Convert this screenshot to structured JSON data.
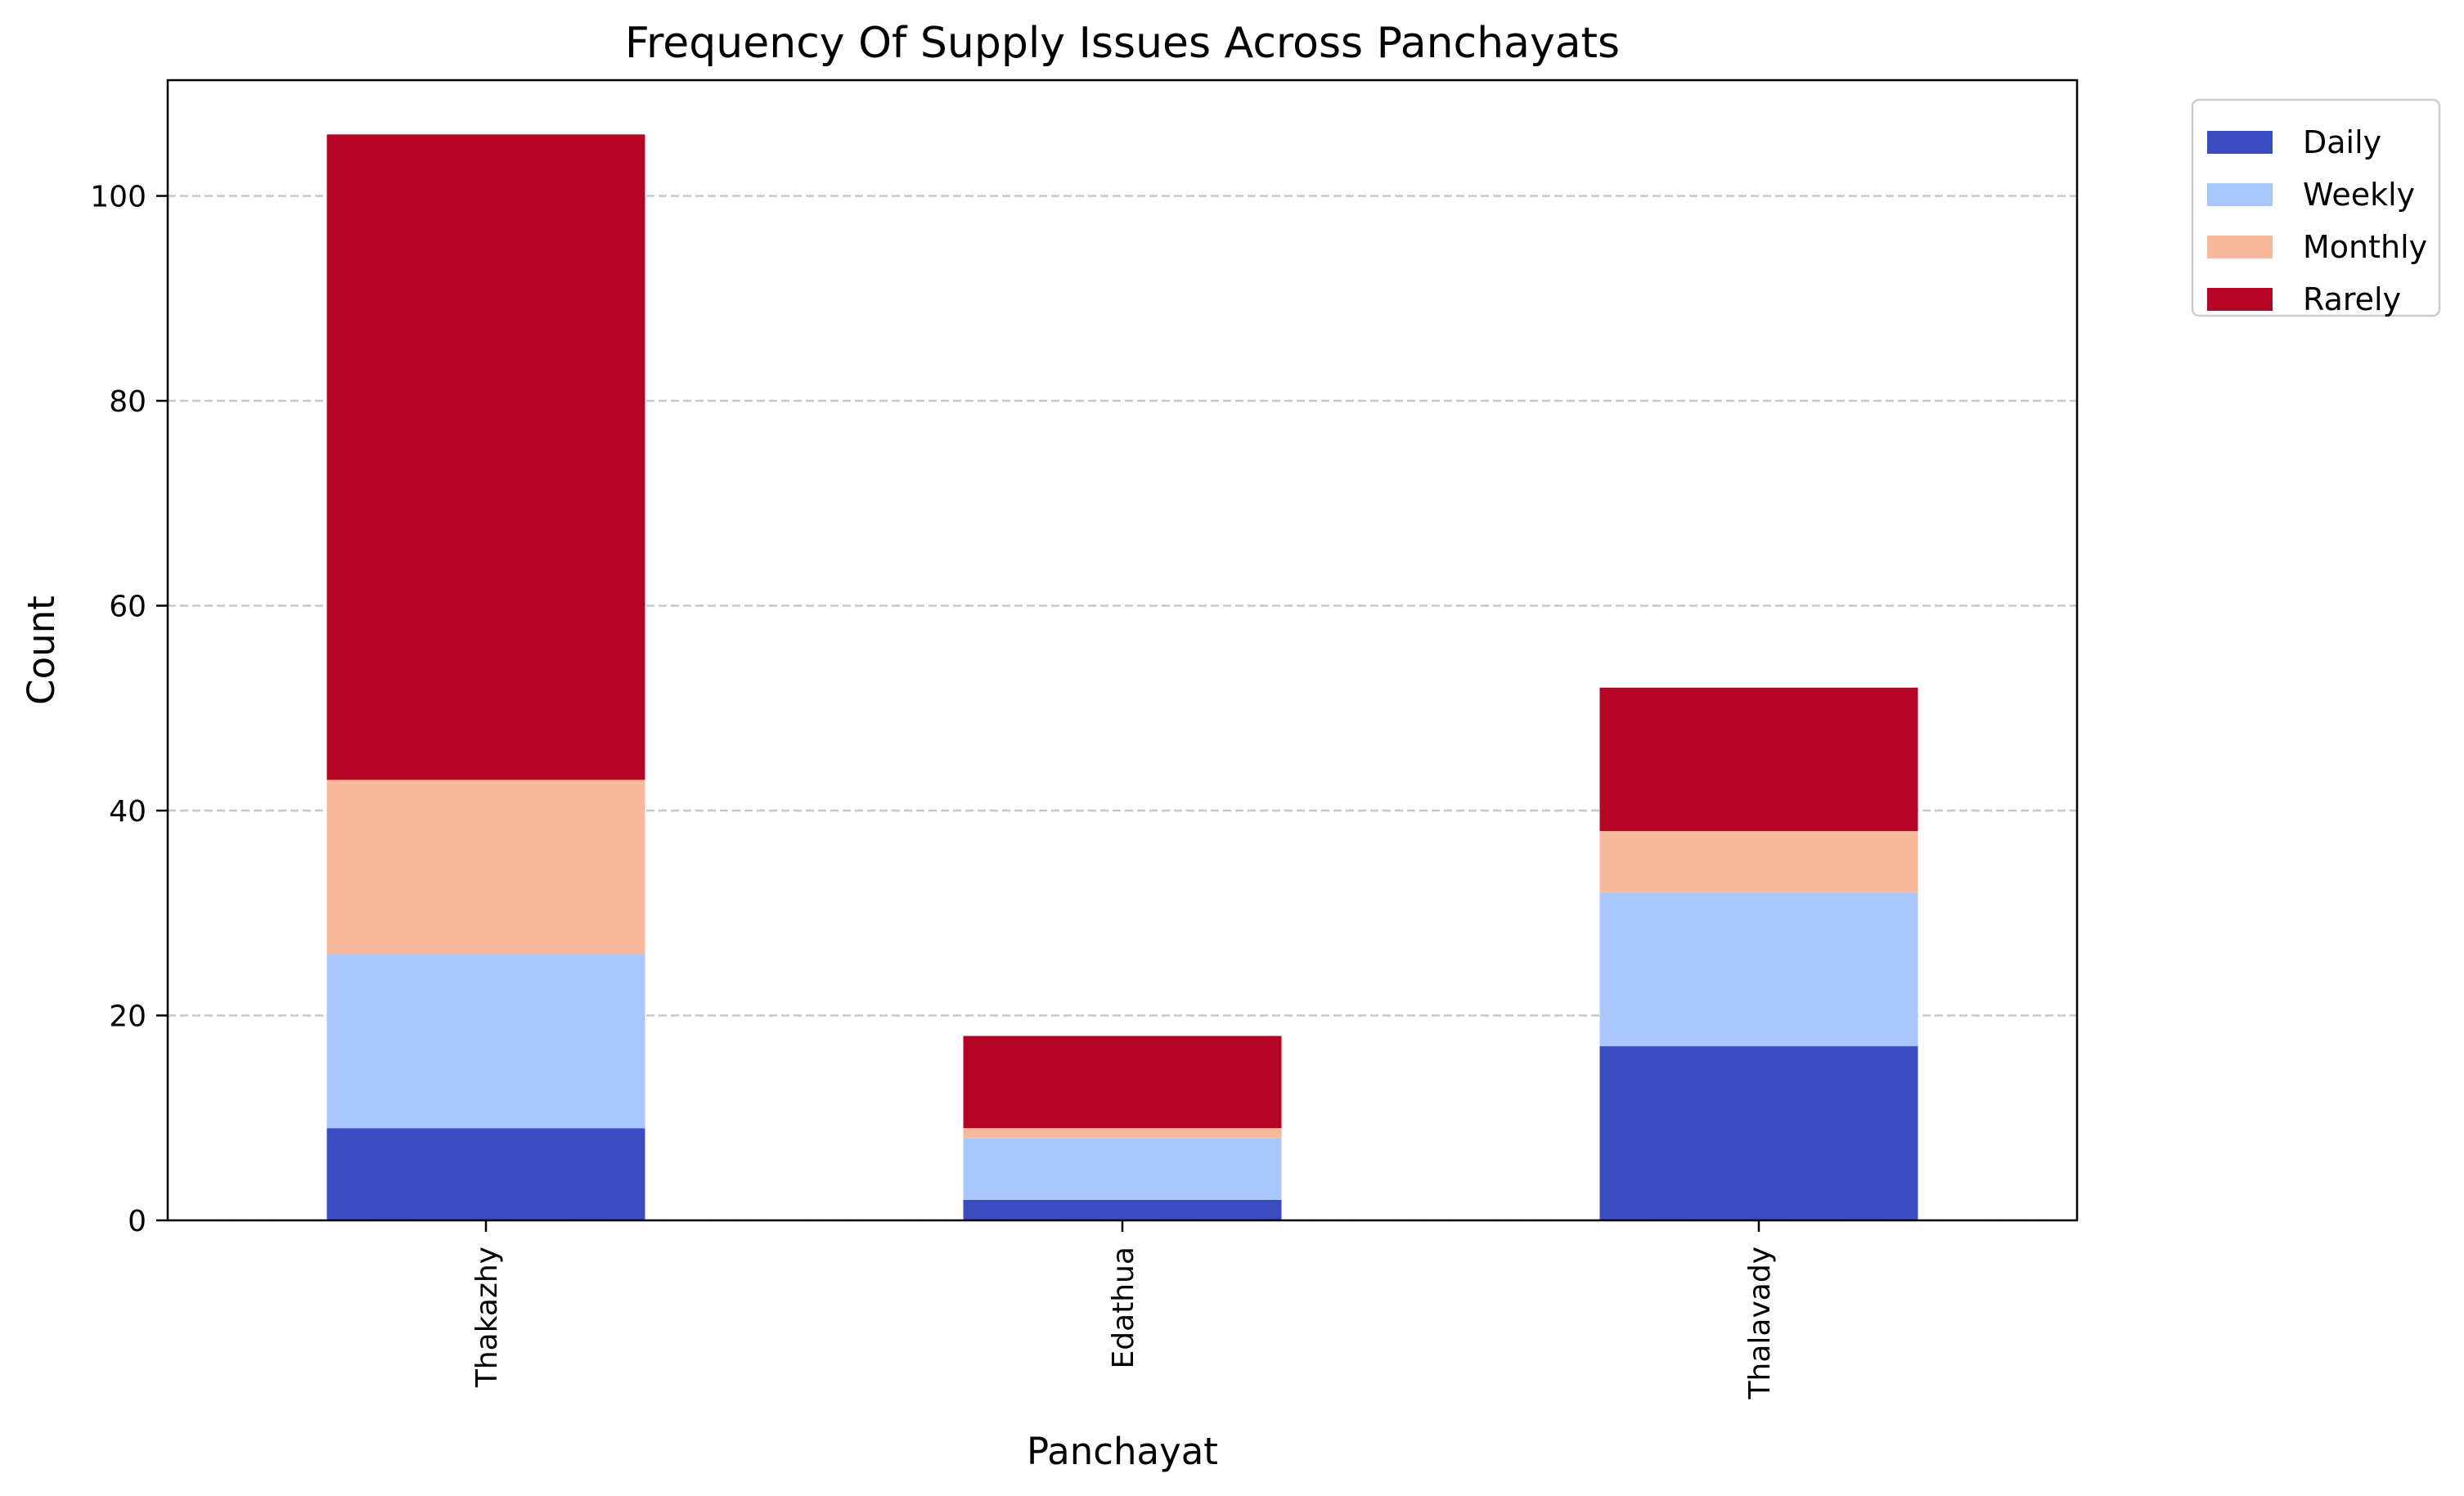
{
  "chart_data": {
    "type": "bar",
    "stacked": true,
    "title": "Frequency Of Supply Issues Across Panchayats",
    "xlabel": "Panchayat",
    "ylabel": "Count",
    "categories": [
      "Thakazhy",
      "Edathua",
      "Thalavady"
    ],
    "series": [
      {
        "name": "Daily",
        "color": "#3b4cc0",
        "values": [
          9,
          2,
          17
        ]
      },
      {
        "name": "Weekly",
        "color": "#aac7fd",
        "values": [
          17,
          6,
          15
        ]
      },
      {
        "name": "Monthly",
        "color": "#f7b89c",
        "values": [
          17,
          1,
          6
        ]
      },
      {
        "name": "Rarely",
        "color": "#b40426",
        "values": [
          63,
          9,
          14
        ]
      }
    ],
    "ylim": [
      0,
      111.3
    ],
    "yticks": [
      0,
      20,
      40,
      60,
      80,
      100
    ],
    "grid": "y-dashed",
    "legend_position": "outside-top-right",
    "x_tick_rotation": "vertical"
  }
}
